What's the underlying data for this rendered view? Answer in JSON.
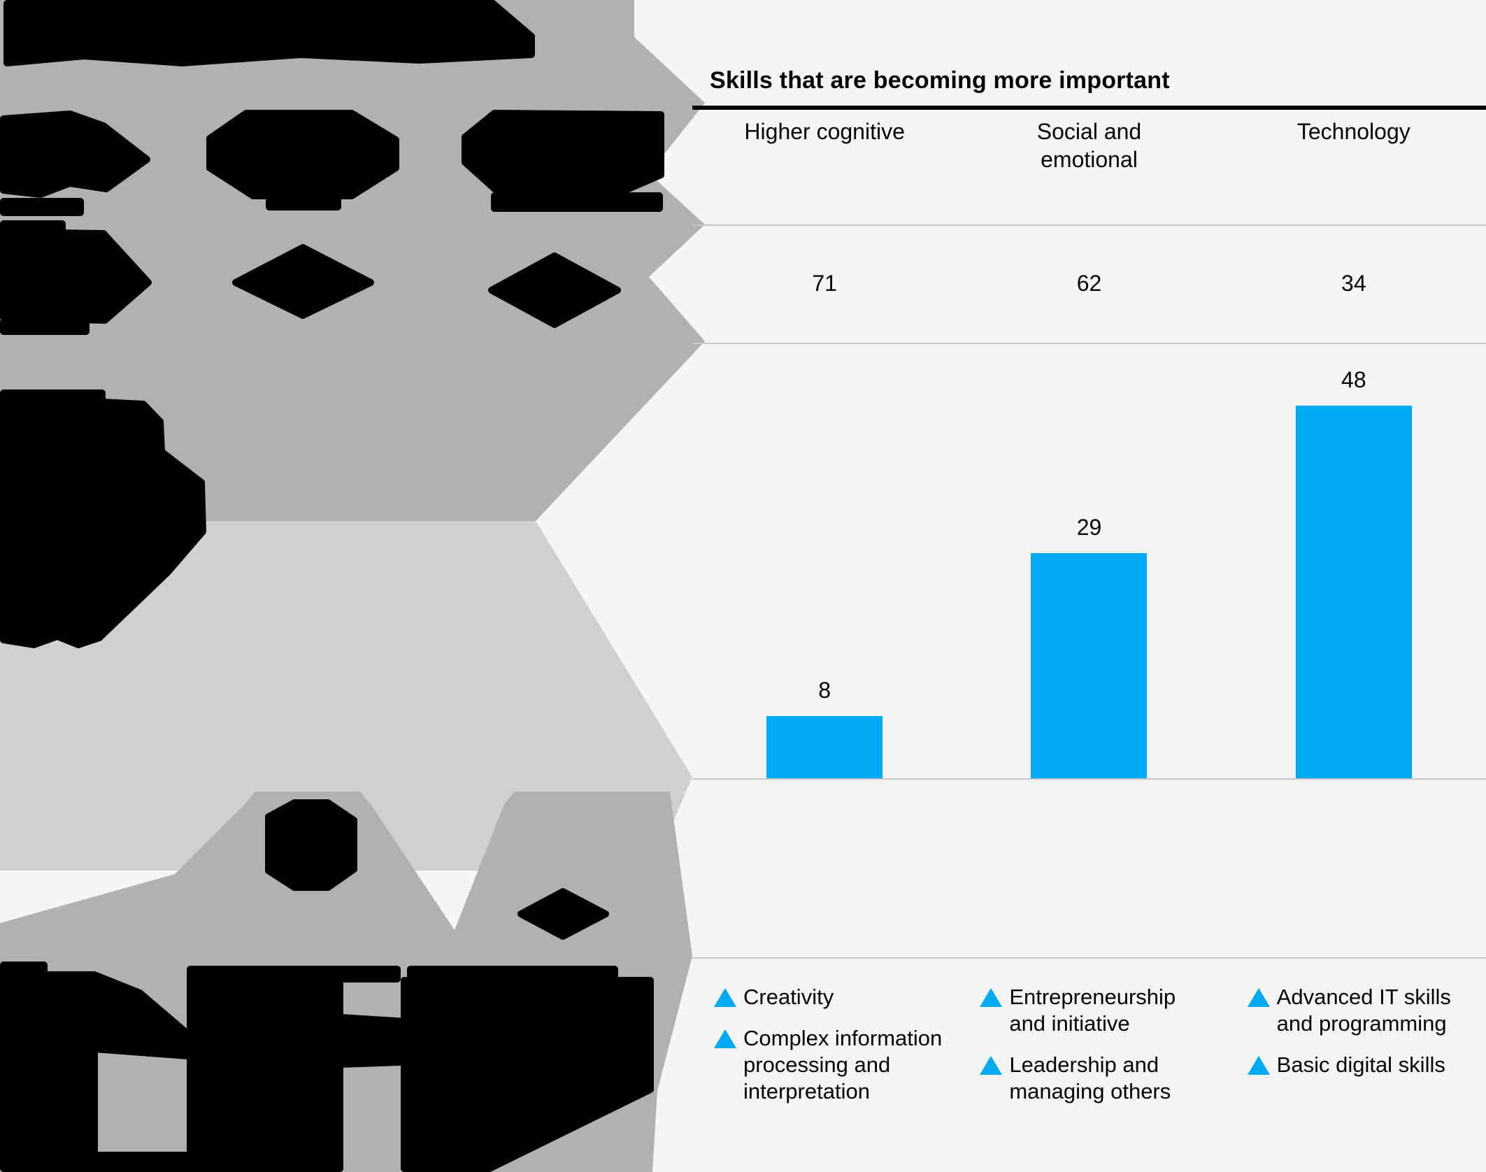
{
  "colors": {
    "accent": "#00a9f4",
    "panel_bg": "#f5f5f5",
    "gray_med": "#b1b1b1",
    "gray_light": "#d0d0d0",
    "divider": "#c6c6c6",
    "ink": "#000000"
  },
  "chart_data": {
    "type": "bar",
    "title": "Skills that are becoming more important",
    "categories": [
      "Higher cognitive",
      "Social and emotional",
      "Technology"
    ],
    "series": [
      {
        "name": "upper-row-values",
        "values": [
          71,
          62,
          34
        ]
      },
      {
        "name": "bar-values",
        "values": [
          8,
          29,
          48
        ]
      }
    ],
    "bar_color": "#00a9f4",
    "grid": "off",
    "legend_position": "bottom",
    "legend_groups": [
      {
        "category": "Higher cognitive",
        "entries": [
          "Creativity",
          "Complex information processing and interpretation"
        ]
      },
      {
        "category": "Social and emotional",
        "entries": [
          "Entrepreneurship and initiative",
          "Leadership and managing others"
        ]
      },
      {
        "category": "Technology",
        "entries": [
          "Advanced IT skills and programming",
          "Basic digital skills"
        ]
      }
    ]
  },
  "panel": {
    "title": "Skills that are becoming more important",
    "columns": [
      {
        "label": "Higher cognitive",
        "value": "71",
        "bar_value": "8"
      },
      {
        "label": "Social and emotional",
        "value": "62",
        "bar_value": "29"
      },
      {
        "label": "Technology",
        "value": "34",
        "bar_value": "48"
      }
    ],
    "legend": {
      "columns": [
        {
          "items": [
            {
              "lines": [
                "Creativity"
              ]
            },
            {
              "lines": [
                "Complex information",
                "processing and",
                "interpretation"
              ]
            }
          ]
        },
        {
          "items": [
            {
              "lines": [
                "Entrepreneurship",
                "and initiative"
              ]
            },
            {
              "lines": [
                "Leadership and",
                "managing others"
              ]
            }
          ]
        },
        {
          "items": [
            {
              "lines": [
                "Advanced IT skills",
                "and programming"
              ]
            },
            {
              "lines": [
                "Basic digital skills"
              ]
            }
          ]
        }
      ]
    }
  }
}
